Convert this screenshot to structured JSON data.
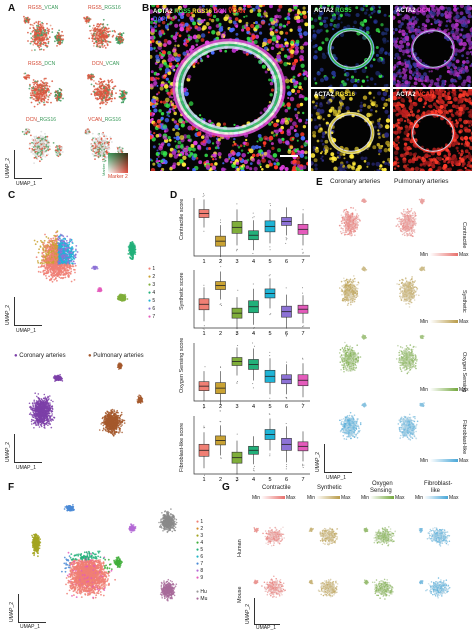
{
  "panels": {
    "A": "A",
    "B": "B",
    "C": "C",
    "D": "D",
    "E": "E",
    "F": "F",
    "G": "G"
  },
  "panelA": {
    "plots": [
      {
        "left": "RGS5",
        "sep": "_",
        "right": "VCAN"
      },
      {
        "left": "RGS5",
        "sep": "_",
        "right": "RGS16"
      },
      {
        "left": "RGS5",
        "sep": "_",
        "right": "DCN"
      },
      {
        "left": "DCN",
        "sep": "_",
        "right": "VCAN"
      },
      {
        "left": "DCN",
        "sep": "_",
        "right": "RGS16"
      },
      {
        "left": "VCAN",
        "sep": "_",
        "right": "RGS16"
      }
    ],
    "umap2": "UMAP_2",
    "umap1": "UMAP_1",
    "marker1": "Marker 1",
    "marker2": "Marker 2"
  },
  "panelB": {
    "main_labels": [
      "ACTA2",
      "RGS5",
      "RGS16",
      "DCN",
      "VCAN",
      "DAPI"
    ],
    "small": [
      [
        "ACTA2",
        "RGS5"
      ],
      [
        "ACTA2",
        "DCN"
      ],
      [
        "ACTA2",
        "RGS16"
      ],
      [
        "ACTA2",
        "VCAN"
      ]
    ]
  },
  "panelC": {
    "clusters": [
      "1",
      "2",
      "3",
      "4",
      "5",
      "6",
      "7"
    ],
    "umap2": "UMAP_2",
    "umap1": "UMAP_1",
    "legend_coronary": "Coronary arteries",
    "legend_pulmonary": "Pulmonary arteries"
  },
  "panelD": {
    "chart_data": [
      {
        "type": "box",
        "ylabel": "Contractile score",
        "categories": [
          "1",
          "2",
          "3",
          "4",
          "5",
          "6",
          "7"
        ]
      },
      {
        "type": "box",
        "ylabel": "Synthetic score",
        "categories": [
          "1",
          "2",
          "3",
          "4",
          "5",
          "6",
          "7"
        ]
      },
      {
        "type": "box",
        "ylabel": "Oxygen Sensing score",
        "categories": [
          "1",
          "2",
          "3",
          "4",
          "5",
          "6",
          "7"
        ]
      },
      {
        "type": "box",
        "ylabel": "Fibroblast-like score",
        "categories": [
          "1",
          "2",
          "3",
          "4",
          "5",
          "6",
          "7"
        ]
      }
    ]
  },
  "panelE": {
    "col1": "Coronary arteries",
    "col2": "Pulmonary arteries",
    "rows": [
      "Contractile",
      "Synthetic",
      "Oxygen Sensing",
      "Fibroblast-like"
    ],
    "min": "Min",
    "max": "Max",
    "umap2": "UMAP_2",
    "umap1": "UMAP_1"
  },
  "panelF": {
    "clusters": [
      "1",
      "2",
      "3",
      "4",
      "5",
      "6",
      "7",
      "8",
      "9"
    ],
    "species": [
      "Hu",
      "Mu"
    ],
    "umap2": "UMAP_2",
    "umap1": "UMAP_1"
  },
  "panelG": {
    "cols": [
      "Contractile",
      "Synthetic",
      "Oxygen Sensing",
      "Fibroblast-like"
    ],
    "col_lines": [
      [
        "Contractile"
      ],
      [
        "Synthetic"
      ],
      [
        "Oxygen",
        "Sensing"
      ],
      [
        "Fibroblast-",
        "like"
      ]
    ],
    "rows": [
      "Human",
      "Mouse"
    ],
    "min": "Min",
    "max": "Max",
    "umap2": "UMAP_2",
    "umap1": "UMAP_1"
  },
  "colors": {
    "c1": "#f07f74",
    "c2": "#c9a233",
    "c3": "#7fae3a",
    "c4": "#22b07a",
    "c5": "#1fb4d6",
    "c6": "#8d72d6",
    "c7": "#e45bbb",
    "contractile": "#e8706c",
    "synthetic": "#b99c4a",
    "oxygen": "#74a83e",
    "fibro": "#48a7d8",
    "coronary": "#7c3fa8",
    "pulmonary": "#a4582c"
  }
}
